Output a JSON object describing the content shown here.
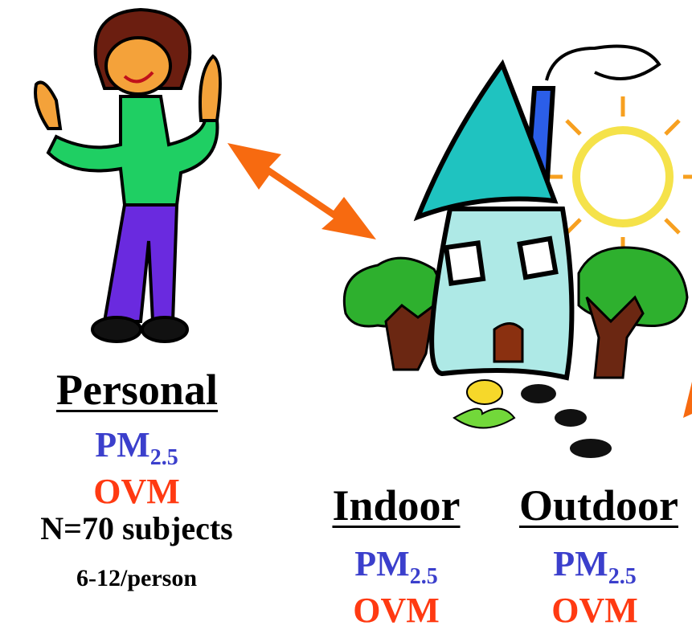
{
  "personal": {
    "label": "Personal",
    "pm": "PM",
    "pm_sub": "2.5",
    "ovm": "OVM",
    "n": "N=70 subjects",
    "per": "6-12/person"
  },
  "indoor": {
    "label": "Indoor",
    "pm": "PM",
    "pm_sub": "2.5",
    "ovm": "OVM"
  },
  "outdoor": {
    "label": "Outdoor",
    "pm": "PM",
    "pm_sub": "2.5",
    "ovm": "OVM"
  }
}
